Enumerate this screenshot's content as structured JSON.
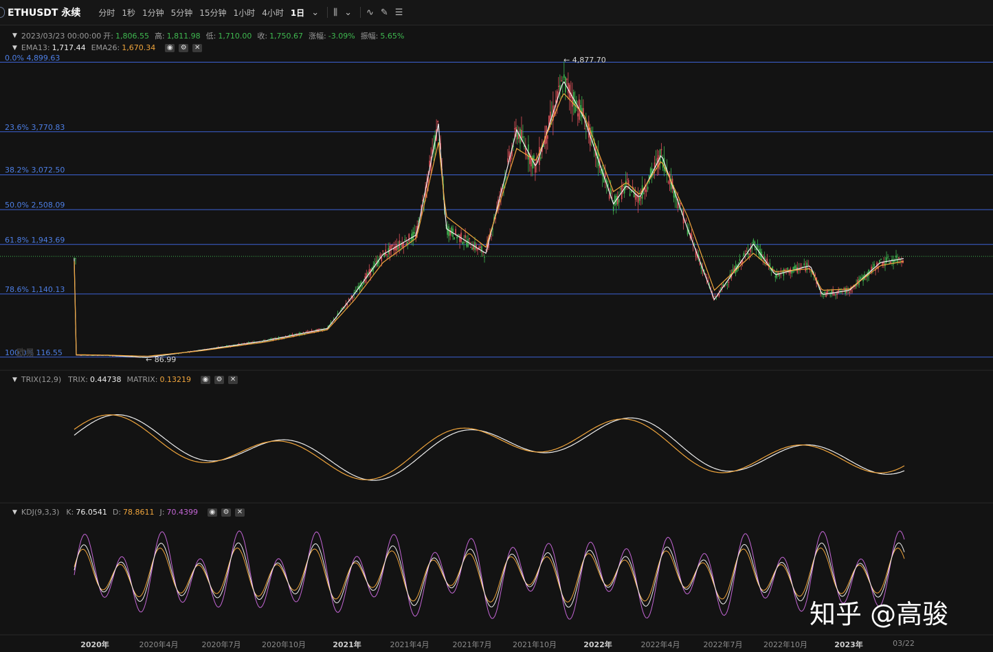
{
  "toolbar": {
    "symbol": "ETHUSDT 永续",
    "timeframes": [
      "分时",
      "1秒",
      "1分钟",
      "5分钟",
      "15分钟",
      "1小时",
      "4小时",
      "1日"
    ],
    "active_timeframe": "1日",
    "icons": [
      "chevron-down-icon",
      "candle-type-icon",
      "chevron-down-icon",
      "indicator-icon",
      "drawing-tools-icon",
      "settings-list-icon"
    ]
  },
  "ohlc_legend": {
    "date": "2023/03/23 00:00:00",
    "open_label": "开:",
    "open": "1,806.55",
    "high_label": "高:",
    "high": "1,811.98",
    "low_label": "低:",
    "low": "1,710.00",
    "close_label": "收:",
    "close": "1,750.67",
    "change_label": "涨幅:",
    "change": "-3.09%",
    "amplitude_label": "振幅:",
    "amplitude": "5.65%"
  },
  "ema_legend": {
    "ema13_label": "EMA13:",
    "ema13": "1,717.44",
    "ema26_label": "EMA26:",
    "ema26": "1,670.34"
  },
  "trix_legend": {
    "name": "TRIX(12,9)",
    "trix_label": "TRIX:",
    "trix": "0.44738",
    "matrix_label": "MATRIX:",
    "matrix": "0.13219"
  },
  "kdj_legend": {
    "name": "KDJ(9,3,3)",
    "k_label": "K:",
    "k": "76.0541",
    "d_label": "D:",
    "d": "78.8611",
    "j_label": "J:",
    "j": "70.4399"
  },
  "fib_levels": [
    {
      "label": "0.0% 4,899.63",
      "price": 4899.63
    },
    {
      "label": "23.6% 3,770.83",
      "price": 3770.83
    },
    {
      "label": "38.2% 3,072.50",
      "price": 3072.5
    },
    {
      "label": "50.0% 2,508.09",
      "price": 2508.09
    },
    {
      "label": "61.8% 1,943.69",
      "price": 1943.69
    },
    {
      "label": "78.6% 1,140.13",
      "price": 1140.13
    },
    {
      "label": "100.0% 116.55",
      "price": 116.55
    }
  ],
  "annotations": {
    "high": "← 4,877.70",
    "low": "← 86.99"
  },
  "x_axis": [
    {
      "label": "2020年",
      "year": true
    },
    {
      "label": "2020年4月",
      "year": false
    },
    {
      "label": "2020年7月",
      "year": false
    },
    {
      "label": "2020年10月",
      "year": false
    },
    {
      "label": "2021年",
      "year": true
    },
    {
      "label": "2021年4月",
      "year": false
    },
    {
      "label": "2021年7月",
      "year": false
    },
    {
      "label": "2021年10月",
      "year": false
    },
    {
      "label": "2022年",
      "year": true
    },
    {
      "label": "2022年4月",
      "year": false
    },
    {
      "label": "2022年7月",
      "year": false
    },
    {
      "label": "2022年10月",
      "year": false
    },
    {
      "label": "2023年",
      "year": true
    },
    {
      "label": "03/22",
      "year": false
    }
  ],
  "watermark": "知乎 @高骏",
  "exchange_logo": "欧易",
  "colors": {
    "up": "#3fb950",
    "down": "#e0525a",
    "ema13": "#f0f0f0",
    "ema26": "#f0a53c",
    "fib": "#3d63d6",
    "kdj_j": "#c466d6"
  },
  "chart_data": {
    "type": "line",
    "x": [
      "2019-12-01",
      "2020-01-15",
      "2020-03-13",
      "2020-06-01",
      "2020-09-01",
      "2020-12-01",
      "2021-01-10",
      "2021-02-20",
      "2021-04-10",
      "2021-05-12",
      "2021-05-23",
      "2021-07-20",
      "2021-09-03",
      "2021-10-01",
      "2021-11-10",
      "2021-12-10",
      "2022-01-22",
      "2022-02-10",
      "2022-03-01",
      "2022-04-02",
      "2022-05-10",
      "2022-06-18",
      "2022-08-14",
      "2022-09-15",
      "2022-11-05",
      "2022-11-22",
      "2023-01-01",
      "2023-02-15",
      "2023-03-22"
    ],
    "series": [
      {
        "name": "EMA13",
        "values": [
          150,
          145,
          110,
          230,
          380,
          580,
          1150,
          1780,
          2100,
          3900,
          2200,
          1800,
          3800,
          3200,
          4600,
          4000,
          2600,
          2900,
          2700,
          3400,
          2200,
          1050,
          1950,
          1450,
          1600,
          1130,
          1200,
          1650,
          1717
        ]
      },
      {
        "name": "EMA26",
        "values": [
          155,
          148,
          130,
          220,
          360,
          560,
          1050,
          1650,
          2050,
          3600,
          2400,
          1900,
          3500,
          3300,
          4400,
          4050,
          2800,
          2950,
          2750,
          3300,
          2400,
          1200,
          1800,
          1500,
          1550,
          1200,
          1220,
          1600,
          1670
        ]
      }
    ],
    "ylim": [
      80,
      4950
    ],
    "y_log": false
  }
}
